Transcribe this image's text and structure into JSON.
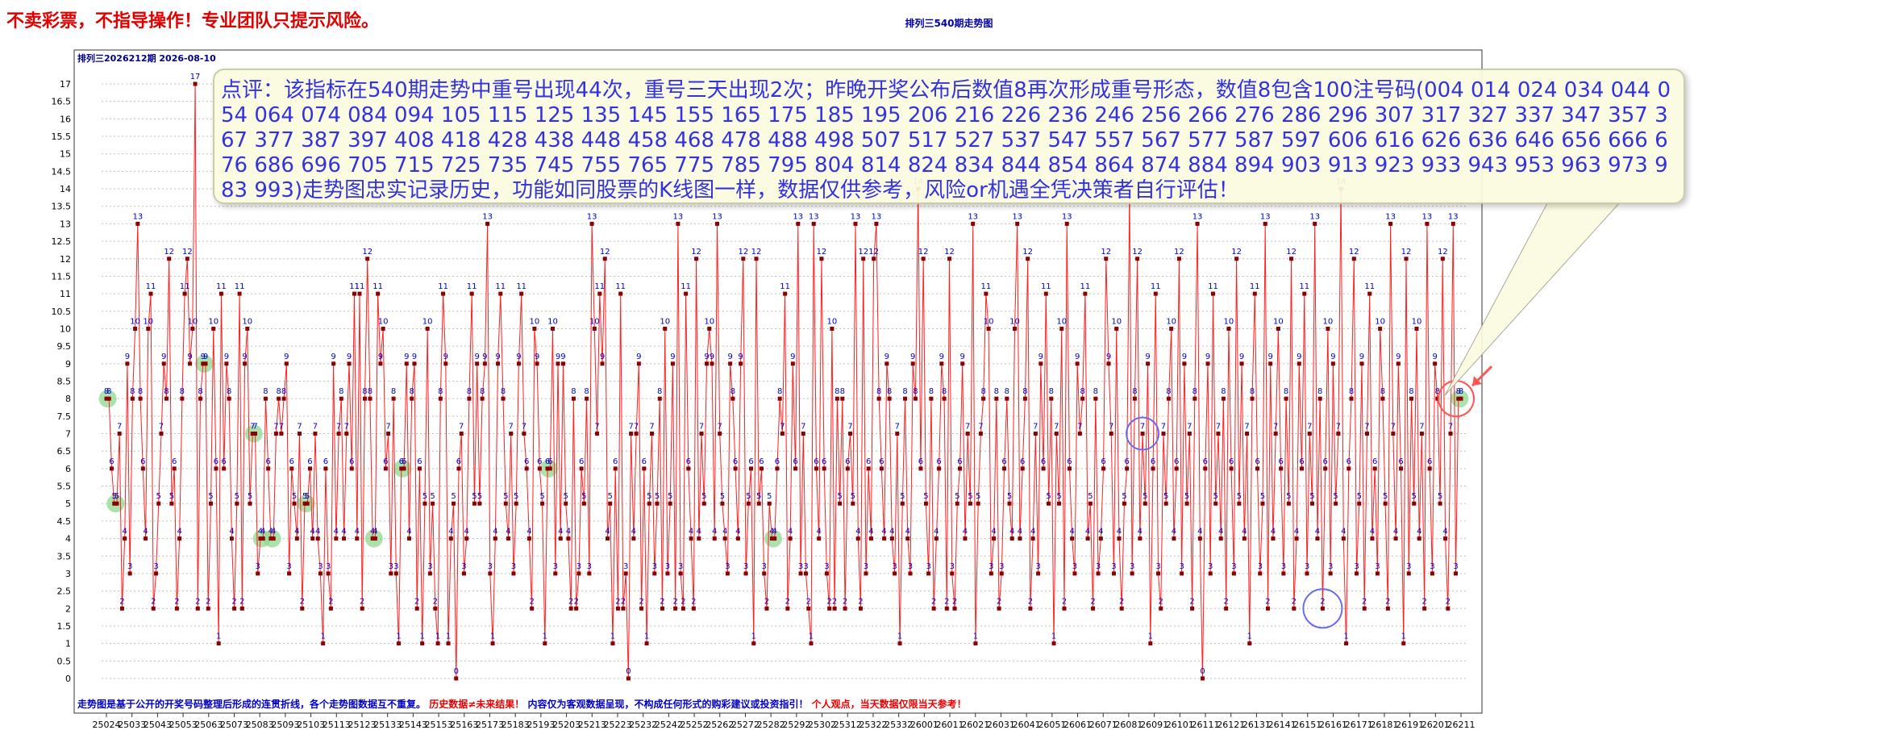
{
  "banner": "不卖彩票，不指导操作！专业团队只提示风险。",
  "title": "排列三540期走势图",
  "period_info": "排列三2026212期  2026-08-10",
  "comment": "点评：该指标在540期走势中重号出现44次，重号三天出现2次；昨晚开奖公布后数值8再次形成重号形态，数值8包含100注号码(004  014  024  034  044  054  064  074  084  094  105  115  125  135  145  155  165  175  185  195  206  216  226  236  246  256  266  276  286  296  307  317  327  337  347  357  367  377  387  397  408  418  428  438  448  458  468  478  488  498  507  517  527  537  547  557  567  577  587  597  606  616  626  636  646  656  666  676  686  696  705  715  725  735  745  755  765  775  785  795  804  814  824  834  844  854  864  874  884  894  903  913  923  933  943  953  963  973  983  993)走势图忠实记录历史，功能如同股票的K线图一样，数据仅供参考，风险or机遇全凭决策者自行评估！",
  "footer": [
    {
      "text": "走势图是基于公开的开奖号码整理后形成的连贯折线，各个走势图数据互不重复。",
      "color": "#0000cc"
    },
    {
      "text": "历史数据≠未来结果！",
      "color": "#ee0000"
    },
    {
      "text": "内容仅为客观数据呈现，不构成任何形式的购彩建议或投资指引！",
      "color": "#0000cc"
    },
    {
      "text": "个人观点，当天数据仅限当天参考！",
      "color": "#ee0000"
    }
  ],
  "colors": {
    "line": "#ff2020",
    "marker": "#8b0000",
    "value_label": "#0000cc",
    "repeat_highlight": "#8fd88f",
    "circle_blue": "#6a6aee",
    "circle_red": "#ff5555",
    "grid": "#c0c0c0"
  },
  "chart_data": {
    "type": "line",
    "title": "排列三540期走势图",
    "ylim": [
      0,
      17
    ],
    "y_ticks": [
      "0",
      "0.5",
      "1",
      "1.5",
      "2",
      "2.5",
      "3",
      "3.5",
      "4",
      "4.5",
      "5",
      "5.5",
      "6",
      "6.5",
      "7",
      "7.5",
      "8",
      "8.5",
      "9",
      "9.5",
      "10",
      "10.5",
      "11",
      "11.5",
      "12",
      "12.5",
      "13",
      "13.5",
      "14",
      "14.5",
      "15",
      "15.5",
      "16",
      "16.5",
      "17"
    ],
    "x_tick_labels": [
      "25024",
      "25033",
      "25043",
      "25053",
      "25063",
      "25073",
      "25083",
      "25093",
      "25103",
      "25113",
      "25123",
      "25133",
      "25143",
      "25153",
      "25163",
      "25173",
      "25183",
      "25193",
      "25203",
      "25213",
      "25223",
      "25232",
      "25242",
      "25252",
      "25262",
      "25272",
      "25282",
      "25292",
      "25302",
      "25312",
      "25322",
      "25332",
      "26001",
      "26011",
      "26021",
      "26031",
      "26041",
      "26051",
      "26061",
      "26071",
      "26081",
      "26091",
      "26101",
      "26111",
      "26121",
      "26131",
      "26141",
      "26151",
      "26161",
      "26171",
      "26181",
      "26191",
      "26201",
      "26211"
    ],
    "grid": true,
    "n_points": 540,
    "values": [
      8,
      8,
      6,
      5,
      5,
      7,
      2,
      4,
      9,
      3,
      8,
      10,
      13,
      8,
      6,
      4,
      10,
      11,
      2,
      3,
      5,
      7,
      9,
      8,
      12,
      5,
      6,
      2,
      4,
      8,
      11,
      12,
      9,
      10,
      17,
      2,
      8,
      9,
      9,
      2,
      5,
      10,
      6,
      1,
      11,
      6,
      9,
      8,
      4,
      2,
      5,
      11,
      2,
      9,
      10,
      5,
      7,
      7,
      3,
      4,
      4,
      8,
      6,
      4,
      4,
      7,
      8,
      7,
      8,
      9,
      3,
      6,
      5,
      4,
      7,
      2,
      5,
      5,
      6,
      4,
      7,
      4,
      3,
      1,
      6,
      3,
      2,
      9,
      4,
      7,
      8,
      4,
      7,
      9,
      6,
      11,
      4,
      11,
      2,
      8,
      12,
      8,
      4,
      4,
      11,
      9,
      10,
      6,
      7,
      3,
      8,
      3,
      1,
      6,
      6,
      9,
      4,
      8,
      9,
      2,
      6,
      1,
      5,
      10,
      3,
      5,
      2,
      1,
      8,
      11,
      9,
      1,
      4,
      5,
      0,
      6,
      7,
      3,
      4,
      8,
      11,
      5,
      9,
      5,
      8,
      9,
      13,
      3,
      1,
      4,
      9,
      11,
      8,
      5,
      4,
      7,
      3,
      5,
      9,
      11,
      7,
      6,
      4,
      2,
      10,
      9,
      6,
      5,
      1,
      6,
      6,
      10,
      3,
      9,
      4,
      9,
      5,
      4,
      2,
      8,
      2,
      3,
      6,
      5,
      8,
      3,
      13,
      10,
      7,
      11,
      9,
      12,
      4,
      5,
      1,
      6,
      2,
      11,
      2,
      3,
      0,
      7,
      4,
      7,
      9,
      2,
      6,
      1,
      5,
      7,
      3,
      5,
      8,
      2,
      10,
      3,
      5,
      9,
      2,
      13,
      3,
      2,
      11,
      6,
      4,
      2,
      12,
      4,
      7,
      5,
      9,
      10,
      9,
      4,
      13,
      7,
      5,
      4,
      3,
      9,
      8,
      6,
      4,
      9,
      12,
      3,
      5,
      6,
      1,
      12,
      5,
      6,
      3,
      2,
      5,
      4,
      4,
      6,
      8,
      7,
      11,
      2,
      4,
      9,
      6,
      13,
      3,
      7,
      3,
      2,
      1,
      13,
      6,
      4,
      12,
      6,
      3,
      2,
      10,
      2,
      8,
      5,
      8,
      2,
      6,
      7,
      5,
      13,
      4,
      2,
      12,
      3,
      6,
      4,
      12,
      13,
      8,
      6,
      4,
      9,
      8,
      4,
      3,
      7,
      1,
      5,
      8,
      4,
      3,
      9,
      8,
      14,
      6,
      12,
      5,
      3,
      8,
      2,
      4,
      6,
      9,
      8,
      2,
      12,
      3,
      2,
      5,
      6,
      9,
      4,
      7,
      5,
      13,
      1,
      5,
      7,
      8,
      11,
      10,
      3,
      4,
      8,
      2,
      3,
      6,
      8,
      5,
      4,
      10,
      13,
      4,
      6,
      8,
      12,
      2,
      4,
      7,
      3,
      9,
      6,
      11,
      5,
      8,
      1,
      7,
      5,
      10,
      2,
      13,
      6,
      4,
      3,
      9,
      7,
      8,
      11,
      4,
      5,
      2,
      8,
      3,
      4,
      6,
      12,
      9,
      7,
      3,
      10,
      4,
      2,
      5,
      6,
      14,
      3,
      8,
      12,
      4,
      7,
      5,
      9,
      1,
      6,
      11,
      3,
      2,
      7,
      5,
      8,
      10,
      4,
      6,
      12,
      3,
      9,
      5,
      7,
      2,
      8,
      13,
      4,
      0,
      6,
      9,
      3,
      11,
      5,
      7,
      4,
      8,
      2,
      10,
      6,
      3,
      12,
      5,
      9,
      4,
      7,
      1,
      8,
      11,
      6,
      3,
      5,
      13,
      2,
      9,
      4,
      7,
      10,
      6,
      3,
      8,
      5,
      12,
      2,
      4,
      9,
      6,
      11,
      3,
      7,
      5,
      13,
      4,
      8,
      2,
      6,
      10,
      3,
      9,
      5,
      7,
      14,
      4,
      1,
      6,
      8,
      12,
      3,
      5,
      9,
      2,
      7,
      11,
      4,
      6,
      3,
      10,
      8,
      5,
      2,
      13,
      7,
      4,
      9,
      6,
      1,
      12,
      3,
      8,
      5,
      10,
      4,
      7,
      2,
      13,
      6,
      3,
      9,
      8,
      5,
      12,
      4,
      2,
      7,
      13,
      3,
      8,
      8
    ]
  }
}
